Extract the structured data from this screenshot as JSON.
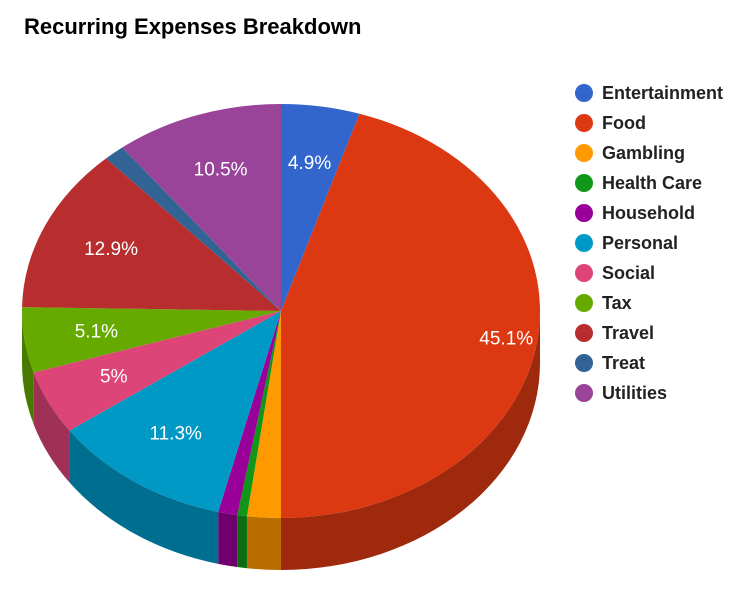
{
  "chart_data": {
    "type": "pie",
    "title": "Recurring Expenses Breakdown",
    "legend_position": "right",
    "three_d": true,
    "slices": [
      {
        "label": "Entertainment",
        "value": 4.9,
        "display": "4.9%",
        "color": "#3366cc"
      },
      {
        "label": "Food",
        "value": 45.1,
        "display": "45.1%",
        "color": "#dc3912"
      },
      {
        "label": "Gambling",
        "value": 2.1,
        "display": "",
        "color": "#ff9900"
      },
      {
        "label": "Health Care",
        "value": 0.6,
        "display": "",
        "color": "#109618"
      },
      {
        "label": "Household",
        "value": 1.2,
        "display": "",
        "color": "#990099"
      },
      {
        "label": "Personal",
        "value": 11.3,
        "display": "11.3%",
        "color": "#0099c6"
      },
      {
        "label": "Social",
        "value": 5.0,
        "display": "5%",
        "color": "#dd4477"
      },
      {
        "label": "Tax",
        "value": 5.1,
        "display": "5.1%",
        "color": "#66aa00"
      },
      {
        "label": "Travel",
        "value": 12.9,
        "display": "12.9%",
        "color": "#b82e2e"
      },
      {
        "label": "Treat",
        "value": 1.3,
        "display": "",
        "color": "#316395"
      },
      {
        "label": "Utilities",
        "value": 10.5,
        "display": "10.5%",
        "color": "#994499"
      }
    ]
  }
}
